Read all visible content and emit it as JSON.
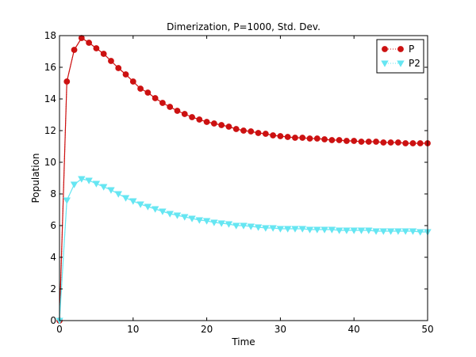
{
  "chart_data": {
    "type": "line",
    "title": "Dimerization, P=1000, Std. Dev.",
    "xlabel": "Time",
    "ylabel": "Population",
    "xlim": [
      0,
      50
    ],
    "ylim": [
      0,
      18
    ],
    "xticks": [
      0,
      10,
      20,
      30,
      40,
      50
    ],
    "yticks": [
      0,
      2,
      4,
      6,
      8,
      10,
      12,
      14,
      16,
      18
    ],
    "grid": false,
    "legend_position": "top-right",
    "series": [
      {
        "name": "P",
        "color": "#cc1111",
        "marker": "circle",
        "x": [
          0,
          1,
          2,
          3,
          4,
          5,
          6,
          7,
          8,
          9,
          10,
          11,
          12,
          13,
          14,
          15,
          16,
          17,
          18,
          19,
          20,
          21,
          22,
          23,
          24,
          25,
          26,
          27,
          28,
          29,
          30,
          31,
          32,
          33,
          34,
          35,
          36,
          37,
          38,
          39,
          40,
          41,
          42,
          43,
          44,
          45,
          46,
          47,
          48,
          49,
          50
        ],
        "values": [
          0.0,
          15.1,
          17.1,
          17.85,
          17.55,
          17.2,
          16.85,
          16.4,
          15.95,
          15.55,
          15.1,
          14.65,
          14.4,
          14.05,
          13.75,
          13.5,
          13.25,
          13.05,
          12.85,
          12.7,
          12.55,
          12.45,
          12.35,
          12.25,
          12.1,
          12.0,
          11.95,
          11.85,
          11.8,
          11.7,
          11.65,
          11.6,
          11.55,
          11.55,
          11.5,
          11.5,
          11.45,
          11.4,
          11.4,
          11.35,
          11.35,
          11.3,
          11.3,
          11.3,
          11.25,
          11.25,
          11.25,
          11.2,
          11.2,
          11.2,
          11.2
        ]
      },
      {
        "name": "P2",
        "color": "#66e6f2",
        "marker": "triangle-down",
        "x": [
          0,
          1,
          2,
          3,
          4,
          5,
          6,
          7,
          8,
          9,
          10,
          11,
          12,
          13,
          14,
          15,
          16,
          17,
          18,
          19,
          20,
          21,
          22,
          23,
          24,
          25,
          26,
          27,
          28,
          29,
          30,
          31,
          32,
          33,
          34,
          35,
          36,
          37,
          38,
          39,
          40,
          41,
          42,
          43,
          44,
          45,
          46,
          47,
          48,
          49,
          50
        ],
        "values": [
          0.0,
          7.6,
          8.6,
          8.95,
          8.85,
          8.65,
          8.45,
          8.25,
          8.0,
          7.75,
          7.55,
          7.35,
          7.2,
          7.05,
          6.9,
          6.75,
          6.65,
          6.55,
          6.45,
          6.35,
          6.3,
          6.2,
          6.15,
          6.1,
          6.0,
          6.0,
          5.95,
          5.9,
          5.85,
          5.85,
          5.8,
          5.8,
          5.8,
          5.8,
          5.75,
          5.75,
          5.75,
          5.75,
          5.7,
          5.7,
          5.7,
          5.7,
          5.7,
          5.65,
          5.65,
          5.65,
          5.65,
          5.65,
          5.65,
          5.6,
          5.6
        ]
      }
    ]
  }
}
